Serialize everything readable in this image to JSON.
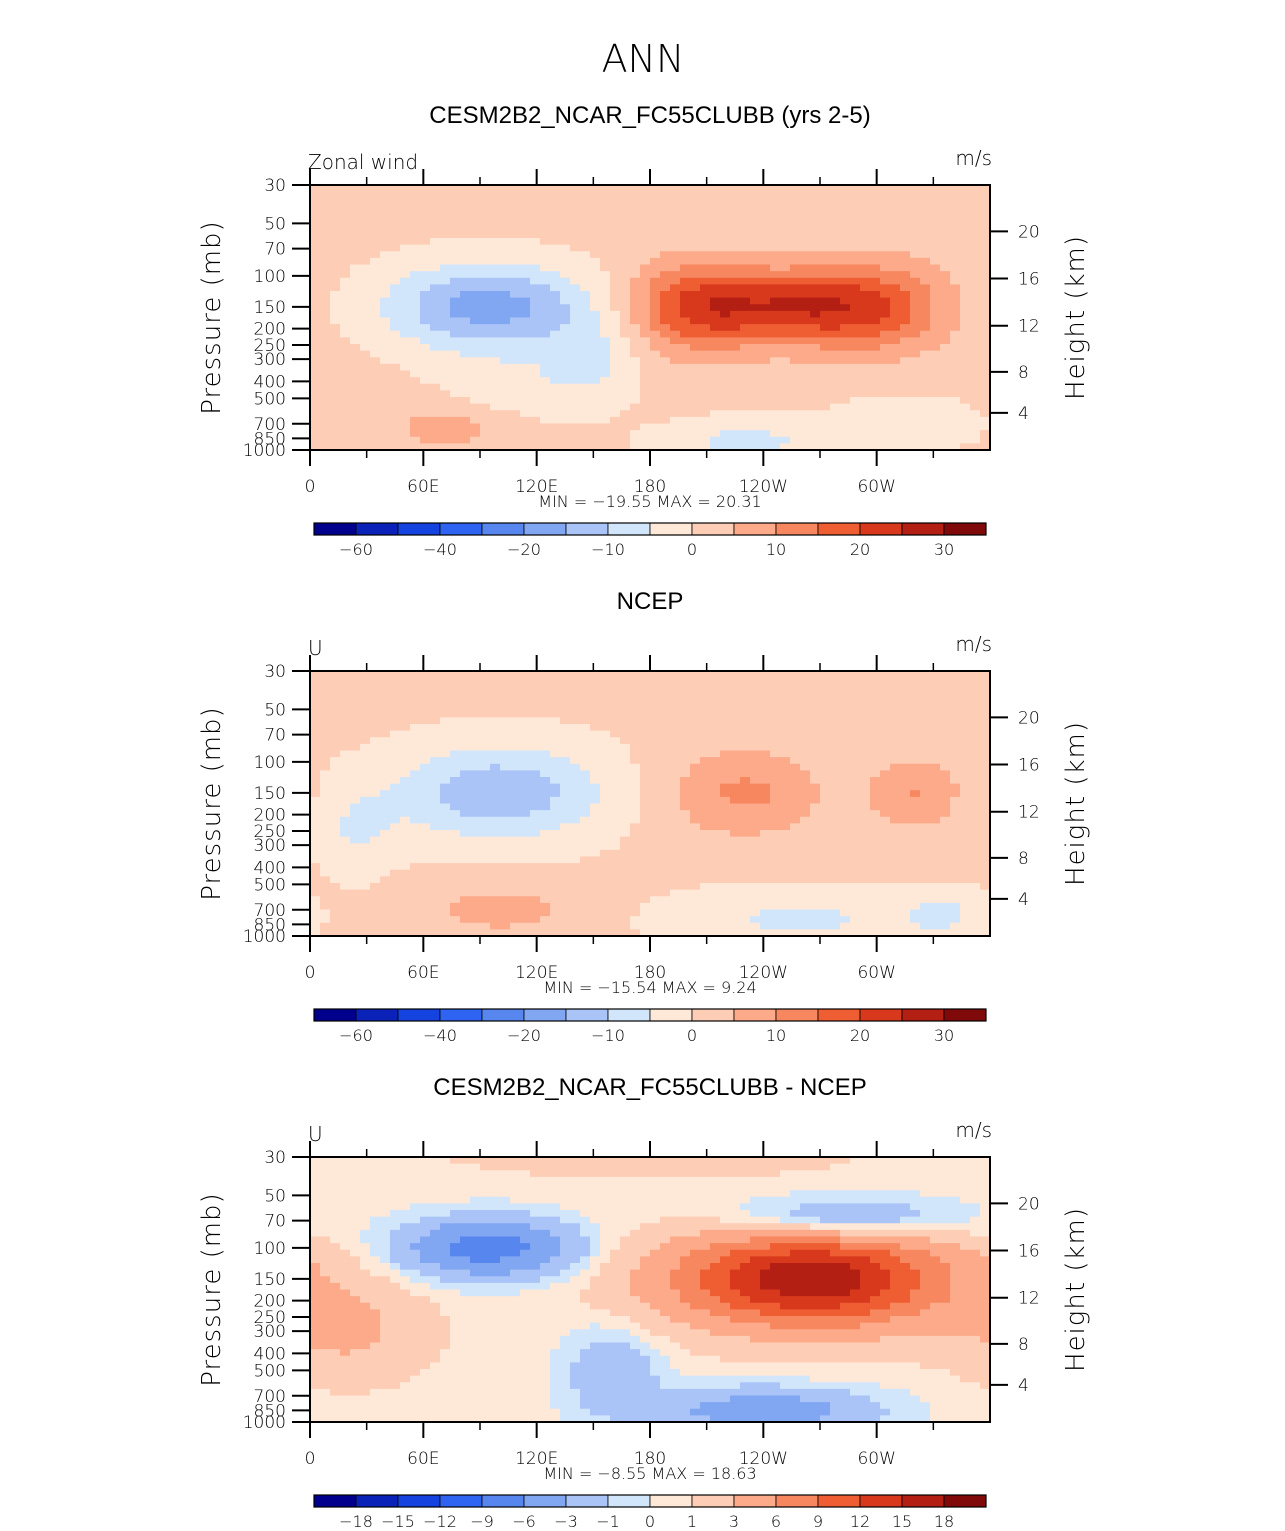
{
  "figure": {
    "title": "ANN"
  },
  "colors": {
    "full": [
      "#00008c",
      "#0b22b8",
      "#1543e0",
      "#2f64f2",
      "#5786ee",
      "#81a6f2",
      "#aac4f7",
      "#d2e6fb",
      "#fee8d7",
      "#fdcdb5",
      "#fcaa8a",
      "#f7875f",
      "#ef5d32",
      "#d8381c",
      "#b41f13",
      "#800a0a"
    ],
    "diff": [
      "#00008c",
      "#0b22b8",
      "#1543e0",
      "#2f64f2",
      "#5786ee",
      "#81a6f2",
      "#aac4f7",
      "#d2e6fb",
      "#fee8d7",
      "#fdcdb5",
      "#fcaa8a",
      "#f7875f",
      "#ef5d32",
      "#d8381c",
      "#b41f13",
      "#800a0a"
    ]
  },
  "chart_data": [
    {
      "type": "heatmap",
      "title": "CESM2B2_NCAR_FC55CLUBB (yrs 2-5)",
      "left_label": "Zonal wind",
      "right_label": "m/s",
      "ylabel": "Pressure (mb)",
      "ylabel_right": "Height (km)",
      "x_ticks": [
        "0",
        "60E",
        "120E",
        "180",
        "120W",
        "60W"
      ],
      "y_ticks": [
        "30",
        "50",
        "70",
        "100",
        "150",
        "200",
        "250",
        "300",
        "400",
        "500",
        "700",
        "850",
        "1000"
      ],
      "height_ticks": [
        "20",
        "16",
        "12",
        "8",
        "4"
      ],
      "stats": "MIN = −19.55   MAX =   20.31",
      "colorbar_labels": [
        "−60",
        "−40",
        "−20",
        "−10",
        "0",
        "10",
        "20",
        "30"
      ],
      "levels": [
        -70,
        -60,
        -50,
        -40,
        -30,
        -20,
        -15,
        -10,
        -5,
        0,
        5,
        10,
        15,
        20,
        25,
        30
      ],
      "features": [
        {
          "lon": 95,
          "p": 150,
          "wlon": 55,
          "wlev": 1.5,
          "amp": -19
        },
        {
          "lon": 105,
          "p": 500,
          "wlon": 40,
          "wlev": 1.3,
          "amp": -6
        },
        {
          "lon": 150,
          "p": 300,
          "wlon": 25,
          "wlev": 1.4,
          "amp": -7
        },
        {
          "lon": 205,
          "p": 150,
          "wlon": 35,
          "wlev": 1.5,
          "amp": 20
        },
        {
          "lon": 295,
          "p": 150,
          "wlon": 40,
          "wlev": 1.5,
          "amp": 19
        },
        {
          "lon": 250,
          "p": 150,
          "wlon": 35,
          "wlev": 1.2,
          "amp": 15
        },
        {
          "lon": 80,
          "p": 700,
          "wlon": 40,
          "wlev": 1.0,
          "amp": 7
        },
        {
          "lon": 230,
          "p": 900,
          "wlon": 45,
          "wlev": 0.8,
          "amp": -8
        },
        {
          "lon": 315,
          "p": 700,
          "wlon": 40,
          "wlev": 1.0,
          "amp": -5
        }
      ],
      "base": 1.5
    },
    {
      "type": "heatmap",
      "title": "NCEP",
      "left_label": "U",
      "right_label": "m/s",
      "ylabel": "Pressure (mb)",
      "ylabel_right": "Height (km)",
      "x_ticks": [
        "0",
        "60E",
        "120E",
        "180",
        "120W",
        "60W"
      ],
      "y_ticks": [
        "30",
        "50",
        "70",
        "100",
        "150",
        "200",
        "250",
        "300",
        "400",
        "500",
        "700",
        "850",
        "1000"
      ],
      "height_ticks": [
        "20",
        "16",
        "12",
        "8",
        "4"
      ],
      "stats": "MIN = −15.54   MAX =     9.24",
      "colorbar_labels": [
        "−60",
        "−40",
        "−20",
        "−10",
        "0",
        "10",
        "20",
        "30"
      ],
      "levels": [
        -70,
        -60,
        -50,
        -40,
        -30,
        -20,
        -15,
        -10,
        -5,
        0,
        5,
        10,
        15,
        20,
        25,
        30
      ],
      "features": [
        {
          "lon": 100,
          "p": 150,
          "wlon": 55,
          "wlev": 1.6,
          "amp": -15
        },
        {
          "lon": 25,
          "p": 250,
          "wlon": 20,
          "wlev": 1.5,
          "amp": -6
        },
        {
          "lon": 230,
          "p": 150,
          "wlon": 40,
          "wlev": 1.5,
          "amp": 10
        },
        {
          "lon": 320,
          "p": 150,
          "wlon": 25,
          "wlev": 1.2,
          "amp": 9
        },
        {
          "lon": 100,
          "p": 700,
          "wlon": 45,
          "wlev": 0.9,
          "amp": 6
        },
        {
          "lon": 260,
          "p": 800,
          "wlon": 70,
          "wlev": 1.0,
          "amp": -7
        },
        {
          "lon": 335,
          "p": 750,
          "wlon": 20,
          "wlev": 0.8,
          "amp": -6
        }
      ],
      "base": 1.0
    },
    {
      "type": "heatmap",
      "title": "CESM2B2_NCAR_FC55CLUBB - NCEP",
      "left_label": "U",
      "right_label": "m/s",
      "ylabel": "Pressure (mb)",
      "ylabel_right": "Height (km)",
      "x_ticks": [
        "0",
        "60E",
        "120E",
        "180",
        "120W",
        "60W"
      ],
      "y_ticks": [
        "30",
        "50",
        "70",
        "100",
        "150",
        "200",
        "250",
        "300",
        "400",
        "500",
        "700",
        "850",
        "1000"
      ],
      "height_ticks": [
        "20",
        "16",
        "12",
        "8",
        "4"
      ],
      "stats": "MIN =    −8.55   MAX =   18.63",
      "colorbar_labels": [
        "−18",
        "−15",
        "−12",
        "−9",
        "−6",
        "−3",
        "−1",
        "0",
        "1",
        "3",
        "6",
        "9",
        "12",
        "15",
        "18"
      ],
      "levels": [
        -21,
        -18,
        -15,
        -12,
        -9,
        -6,
        -3,
        -1,
        0,
        1,
        3,
        6,
        9,
        12,
        15,
        18
      ],
      "features": [
        {
          "lon": 95,
          "p": 100,
          "wlon": 45,
          "wlev": 1.0,
          "amp": -8
        },
        {
          "lon": 280,
          "p": 70,
          "wlon": 60,
          "wlev": 0.8,
          "amp": -5
        },
        {
          "lon": 265,
          "p": 150,
          "wlon": 70,
          "wlev": 1.6,
          "amp": 17
        },
        {
          "lon": 20,
          "p": 300,
          "wlon": 40,
          "wlev": 1.6,
          "amp": 3
        },
        {
          "lon": 160,
          "p": 500,
          "wlon": 25,
          "wlev": 1.5,
          "amp": -3
        },
        {
          "lon": 240,
          "p": 850,
          "wlon": 60,
          "wlev": 0.8,
          "amp": -5
        },
        {
          "lon": 180,
          "p": 30,
          "wlon": 90,
          "wlev": 0.6,
          "amp": 2
        }
      ],
      "base": 0.5
    }
  ]
}
